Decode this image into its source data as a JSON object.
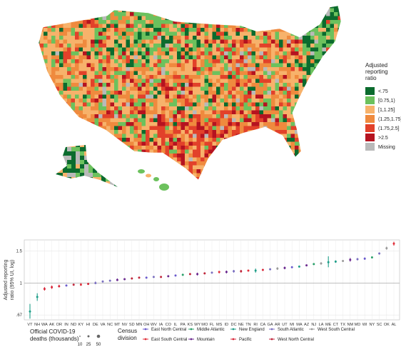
{
  "map_legend": {
    "title_lines": [
      "Adjusted",
      "reporting",
      "ratio"
    ],
    "items": [
      {
        "label": "<.75",
        "color": "#0b6b2e"
      },
      {
        "label": "[0.75,1)",
        "color": "#6cc15d"
      },
      {
        "label": "[1,1.25]",
        "color": "#f7b26b"
      },
      {
        "label": "(1.25,1.75]",
        "color": "#ef8a3e"
      },
      {
        "label": "(1.75,2.5]",
        "color": "#e2412a"
      },
      {
        "label": ">2.5",
        "color": "#b51320"
      },
      {
        "label": "Missing",
        "color": "#b9b9b9"
      }
    ]
  },
  "chart_data": {
    "type": "scatter",
    "title": "",
    "ylabel_lines": [
      "Adjusted reporting",
      "ratio (95% UI, log)"
    ],
    "y_scale": "log",
    "ylim": [
      0.63,
      1.72
    ],
    "yticks": [
      {
        "value": 0.67,
        "label": ".67"
      },
      {
        "value": 1,
        "label": "1"
      },
      {
        "value": 1.5,
        "label": "1.5"
      }
    ],
    "grid": true,
    "points": [
      {
        "state": "VT",
        "y": 0.7,
        "lo": 0.64,
        "hi": 0.77,
        "division": "New England"
      },
      {
        "state": "NH",
        "y": 0.84,
        "lo": 0.8,
        "hi": 0.88,
        "division": "New England"
      },
      {
        "state": "WA",
        "y": 0.93,
        "lo": 0.91,
        "hi": 0.95,
        "division": "Pacific"
      },
      {
        "state": "AK",
        "y": 0.95,
        "lo": 0.93,
        "hi": 0.97,
        "division": "Pacific"
      },
      {
        "state": "OR",
        "y": 0.96,
        "lo": 0.95,
        "hi": 0.98,
        "division": "Pacific"
      },
      {
        "state": "IN",
        "y": 0.97,
        "lo": 0.96,
        "hi": 0.98,
        "division": "East North Central"
      },
      {
        "state": "ND",
        "y": 0.98,
        "lo": 0.97,
        "hi": 0.99,
        "division": "West North Central"
      },
      {
        "state": "KY",
        "y": 0.98,
        "lo": 0.97,
        "hi": 1.0,
        "division": "East South Central"
      },
      {
        "state": "HI",
        "y": 0.99,
        "lo": 0.98,
        "hi": 1.0,
        "division": "Pacific"
      },
      {
        "state": "DE",
        "y": 1.0,
        "lo": 0.99,
        "hi": 1.02,
        "division": "South Atlantic"
      },
      {
        "state": "VA",
        "y": 1.02,
        "lo": 1.01,
        "hi": 1.03,
        "division": "South Atlantic"
      },
      {
        "state": "NC",
        "y": 1.03,
        "lo": 1.02,
        "hi": 1.04,
        "division": "South Atlantic"
      },
      {
        "state": "MT",
        "y": 1.04,
        "lo": 1.03,
        "hi": 1.06,
        "division": "Mountain"
      },
      {
        "state": "NV",
        "y": 1.05,
        "lo": 1.04,
        "hi": 1.06,
        "division": "Mountain"
      },
      {
        "state": "SD",
        "y": 1.06,
        "lo": 1.05,
        "hi": 1.07,
        "division": "West North Central"
      },
      {
        "state": "MN",
        "y": 1.07,
        "lo": 1.06,
        "hi": 1.08,
        "division": "West North Central"
      },
      {
        "state": "OH",
        "y": 1.07,
        "lo": 1.06,
        "hi": 1.08,
        "division": "East North Central"
      },
      {
        "state": "WV",
        "y": 1.08,
        "lo": 1.07,
        "hi": 1.09,
        "division": "South Atlantic"
      },
      {
        "state": "IA",
        "y": 1.08,
        "lo": 1.07,
        "hi": 1.09,
        "division": "West North Central"
      },
      {
        "state": "CO",
        "y": 1.09,
        "lo": 1.08,
        "hi": 1.1,
        "division": "Mountain"
      },
      {
        "state": "IL",
        "y": 1.1,
        "lo": 1.09,
        "hi": 1.11,
        "division": "East North Central"
      },
      {
        "state": "PA",
        "y": 1.11,
        "lo": 1.1,
        "hi": 1.12,
        "division": "Middle Atlantic"
      },
      {
        "state": "KS",
        "y": 1.12,
        "lo": 1.11,
        "hi": 1.13,
        "division": "West North Central"
      },
      {
        "state": "WY",
        "y": 1.12,
        "lo": 1.1,
        "hi": 1.14,
        "division": "Mountain"
      },
      {
        "state": "MO",
        "y": 1.13,
        "lo": 1.12,
        "hi": 1.14,
        "division": "West North Central"
      },
      {
        "state": "FL",
        "y": 1.14,
        "lo": 1.13,
        "hi": 1.15,
        "division": "South Atlantic"
      },
      {
        "state": "MS",
        "y": 1.15,
        "lo": 1.13,
        "hi": 1.16,
        "division": "East South Central"
      },
      {
        "state": "ID",
        "y": 1.15,
        "lo": 1.13,
        "hi": 1.17,
        "division": "Mountain"
      },
      {
        "state": "DC",
        "y": 1.16,
        "lo": 1.14,
        "hi": 1.18,
        "division": "South Atlantic"
      },
      {
        "state": "NE",
        "y": 1.16,
        "lo": 1.14,
        "hi": 1.18,
        "division": "West North Central"
      },
      {
        "state": "TN",
        "y": 1.17,
        "lo": 1.16,
        "hi": 1.18,
        "division": "East South Central"
      },
      {
        "state": "RI",
        "y": 1.17,
        "lo": 1.14,
        "hi": 1.2,
        "division": "New England"
      },
      {
        "state": "CA",
        "y": 1.18,
        "lo": 1.17,
        "hi": 1.19,
        "division": "Pacific"
      },
      {
        "state": "GA",
        "y": 1.19,
        "lo": 1.18,
        "hi": 1.2,
        "division": "South Atlantic"
      },
      {
        "state": "AR",
        "y": 1.2,
        "lo": 1.18,
        "hi": 1.22,
        "division": "West South Central"
      },
      {
        "state": "UT",
        "y": 1.21,
        "lo": 1.19,
        "hi": 1.23,
        "division": "Mountain"
      },
      {
        "state": "MI",
        "y": 1.22,
        "lo": 1.21,
        "hi": 1.23,
        "division": "East North Central"
      },
      {
        "state": "MA",
        "y": 1.23,
        "lo": 1.22,
        "hi": 1.24,
        "division": "New England"
      },
      {
        "state": "AZ",
        "y": 1.25,
        "lo": 1.24,
        "hi": 1.26,
        "division": "Mountain"
      },
      {
        "state": "NJ",
        "y": 1.27,
        "lo": 1.26,
        "hi": 1.28,
        "division": "Middle Atlantic"
      },
      {
        "state": "LA",
        "y": 1.28,
        "lo": 1.26,
        "hi": 1.3,
        "division": "West South Central"
      },
      {
        "state": "ME",
        "y": 1.3,
        "lo": 1.22,
        "hi": 1.4,
        "division": "New England"
      },
      {
        "state": "CT",
        "y": 1.31,
        "lo": 1.29,
        "hi": 1.33,
        "division": "New England"
      },
      {
        "state": "TX",
        "y": 1.32,
        "lo": 1.31,
        "hi": 1.33,
        "division": "West South Central"
      },
      {
        "state": "NM",
        "y": 1.34,
        "lo": 1.31,
        "hi": 1.37,
        "division": "Mountain"
      },
      {
        "state": "MD",
        "y": 1.35,
        "lo": 1.33,
        "hi": 1.37,
        "division": "South Atlantic"
      },
      {
        "state": "WI",
        "y": 1.36,
        "lo": 1.34,
        "hi": 1.38,
        "division": "East North Central"
      },
      {
        "state": "NY",
        "y": 1.38,
        "lo": 1.37,
        "hi": 1.39,
        "division": "Middle Atlantic"
      },
      {
        "state": "SC",
        "y": 1.45,
        "lo": 1.43,
        "hi": 1.47,
        "division": "South Atlantic"
      },
      {
        "state": "OK",
        "y": 1.55,
        "lo": 1.52,
        "hi": 1.58,
        "division": "West South Central"
      },
      {
        "state": "AL",
        "y": 1.64,
        "lo": 1.6,
        "hi": 1.68,
        "division": "East South Central"
      }
    ]
  },
  "size_legend": {
    "title_lines": [
      "Official COVID-19",
      "deaths (thousands)"
    ],
    "labels": [
      "10",
      "25",
      "50"
    ]
  },
  "division_legend": {
    "title_lines": [
      "Census",
      "division"
    ],
    "items": [
      {
        "label": "East North Central",
        "color": "#6a5acd"
      },
      {
        "label": "Middle Atlantic",
        "color": "#2aa06a"
      },
      {
        "label": "New England",
        "color": "#1f9e89"
      },
      {
        "label": "South Atlantic",
        "color": "#7a6fc0"
      },
      {
        "label": "West South Central",
        "color": "#9a9a9a"
      },
      {
        "label": "East South Central",
        "color": "#e0303b"
      },
      {
        "label": "Mountain",
        "color": "#6b2a8f"
      },
      {
        "label": "Pacific",
        "color": "#d8273a"
      },
      {
        "label": "West North Central",
        "color": "#c0263b"
      }
    ]
  }
}
